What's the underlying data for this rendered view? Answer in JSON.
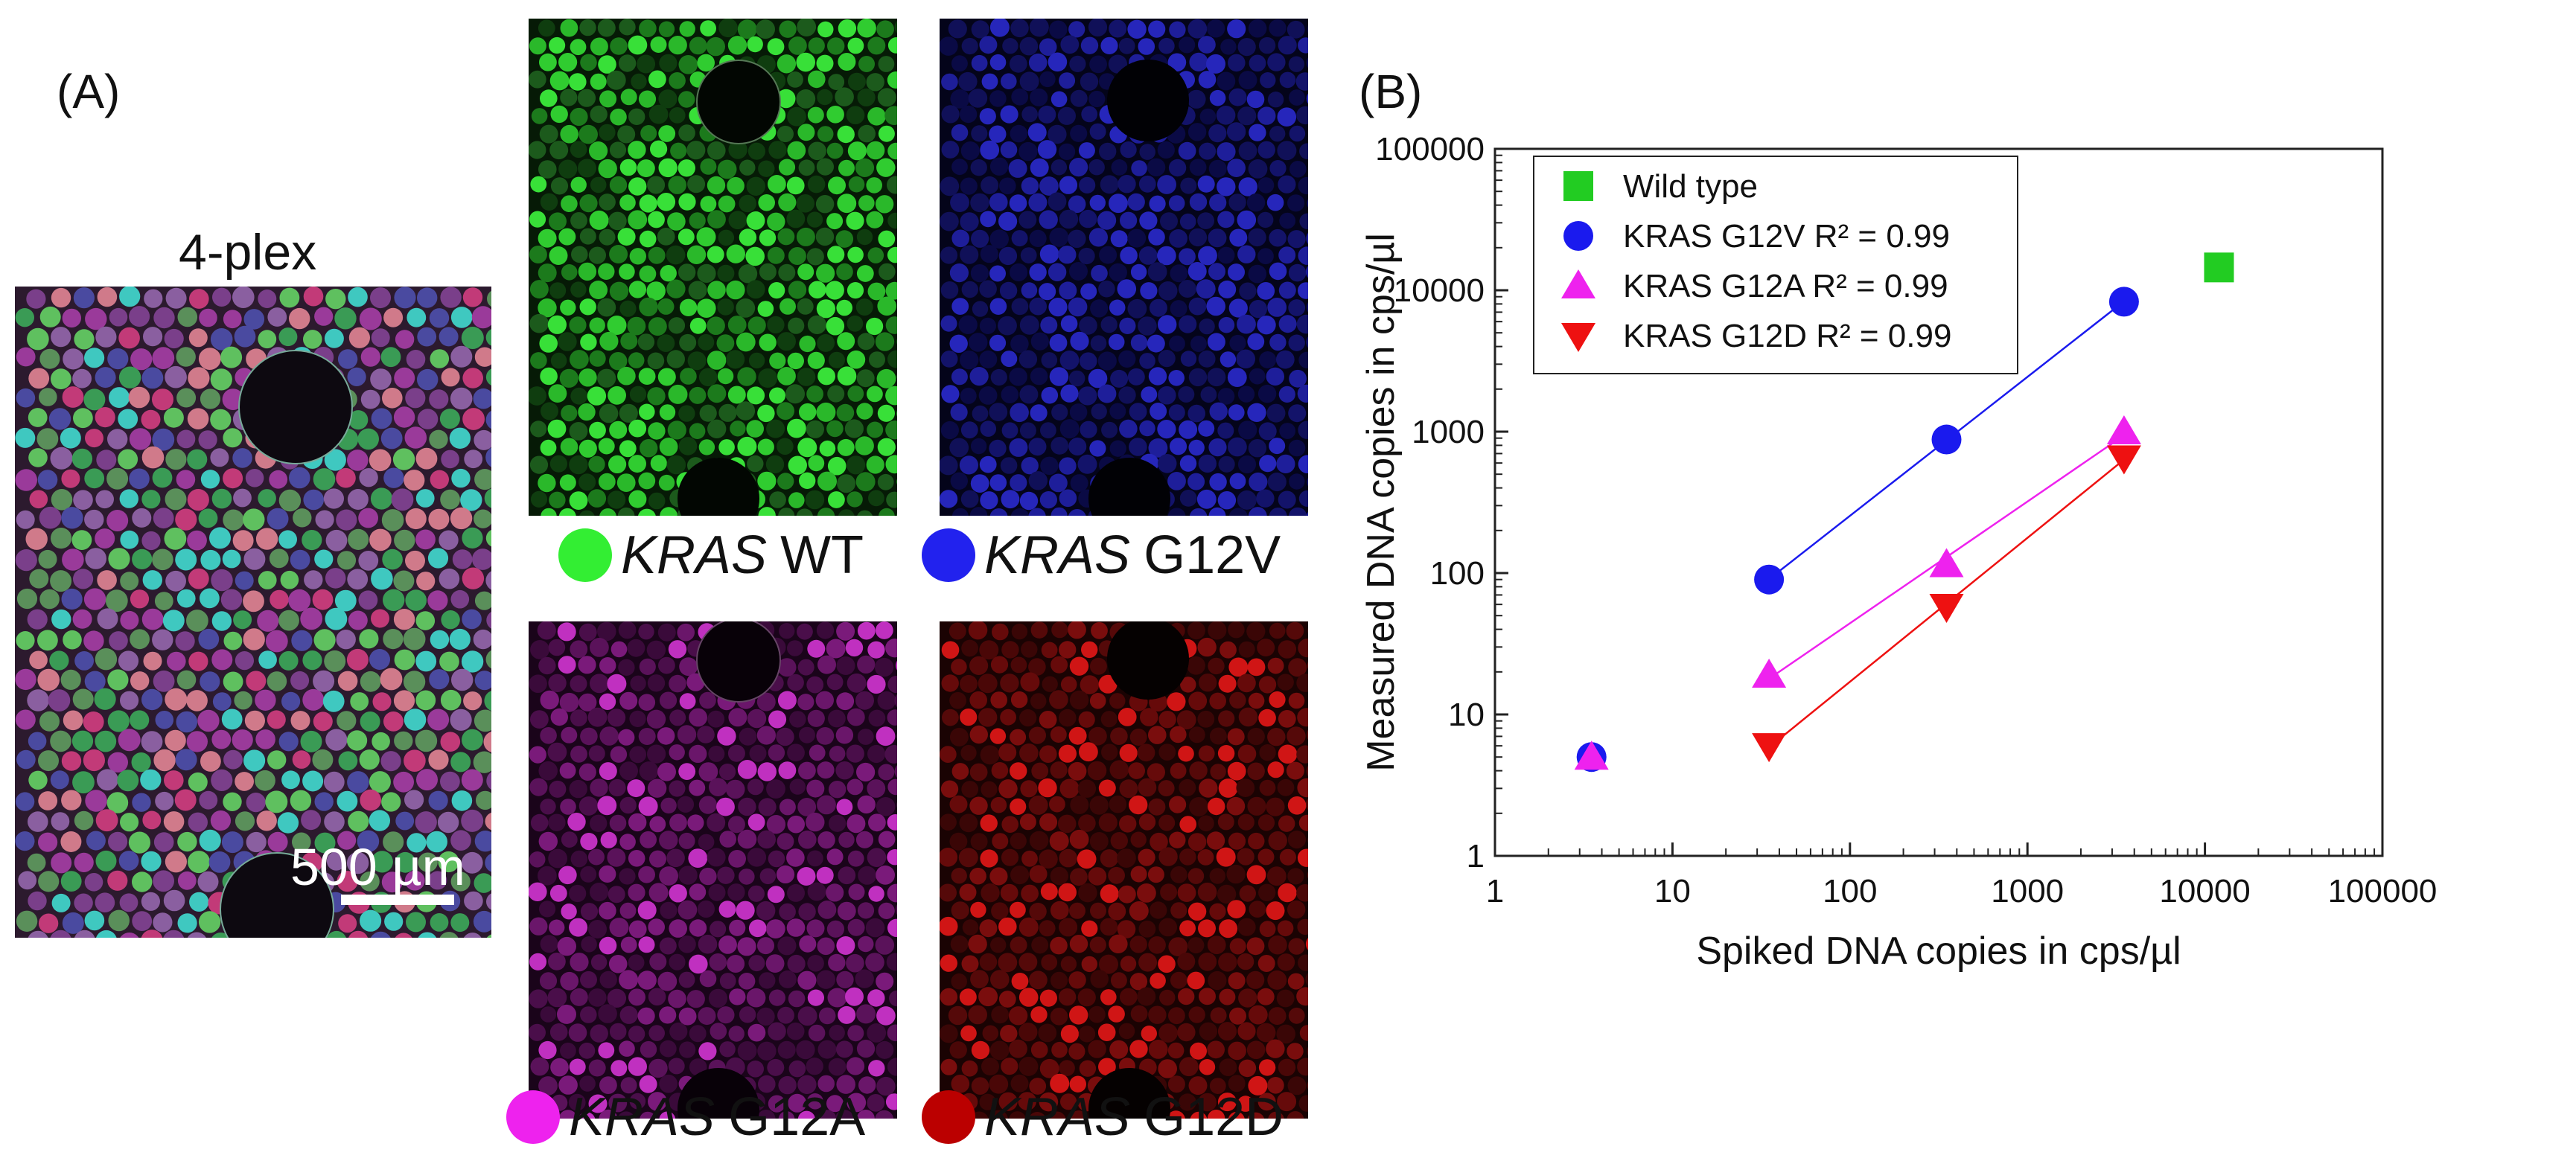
{
  "panel_a": {
    "label": "(A)",
    "composite": {
      "title": "4-plex",
      "scale_bar": "500 µm"
    },
    "channels": [
      {
        "gene": "KRAS",
        "variant": "WT",
        "color": "#33ee33"
      },
      {
        "gene": "KRAS",
        "variant": "G12V",
        "color": "#2222ee"
      },
      {
        "gene": "KRAS",
        "variant": "G12A",
        "color": "#ee22ee"
      },
      {
        "gene": "KRAS",
        "variant": "G12D",
        "color": "#cc0000"
      }
    ]
  },
  "panel_b": {
    "label": "(B)"
  },
  "chart_data": {
    "type": "scatter",
    "xscale": "log",
    "yscale": "log",
    "xlim": [
      1,
      100000
    ],
    "ylim": [
      1,
      100000
    ],
    "xticks": [
      1,
      10,
      100,
      1000,
      10000,
      100000
    ],
    "yticks": [
      1,
      10,
      100,
      1000,
      10000,
      100000
    ],
    "xlabel": "Spiked DNA copies in cps/µl",
    "ylabel": "Measured DNA copies in cps/µl",
    "legend_position": "top-left",
    "series": [
      {
        "name": "Wild type",
        "marker": "square",
        "color": "#22cc22",
        "fit": false,
        "points": [
          [
            12000,
            14500
          ]
        ]
      },
      {
        "name": "KRAS G12V R² = 0.99",
        "marker": "circle",
        "color": "#1a1aee",
        "fit": true,
        "points": [
          [
            3.5,
            5
          ],
          [
            35,
            90
          ],
          [
            350,
            880
          ],
          [
            3500,
            8300
          ]
        ]
      },
      {
        "name": "KRAS G12A R² = 0.99",
        "marker": "triangle-up",
        "color": "#ee22ee",
        "fit": true,
        "points": [
          [
            3.5,
            5
          ],
          [
            35,
            19
          ],
          [
            350,
            115
          ],
          [
            3500,
            1000
          ]
        ]
      },
      {
        "name": "KRAS G12D R² = 0.99",
        "marker": "triangle-down",
        "color": "#ee1111",
        "fit": true,
        "points": [
          [
            35,
            6
          ],
          [
            350,
            58
          ],
          [
            3500,
            650
          ]
        ]
      }
    ]
  }
}
